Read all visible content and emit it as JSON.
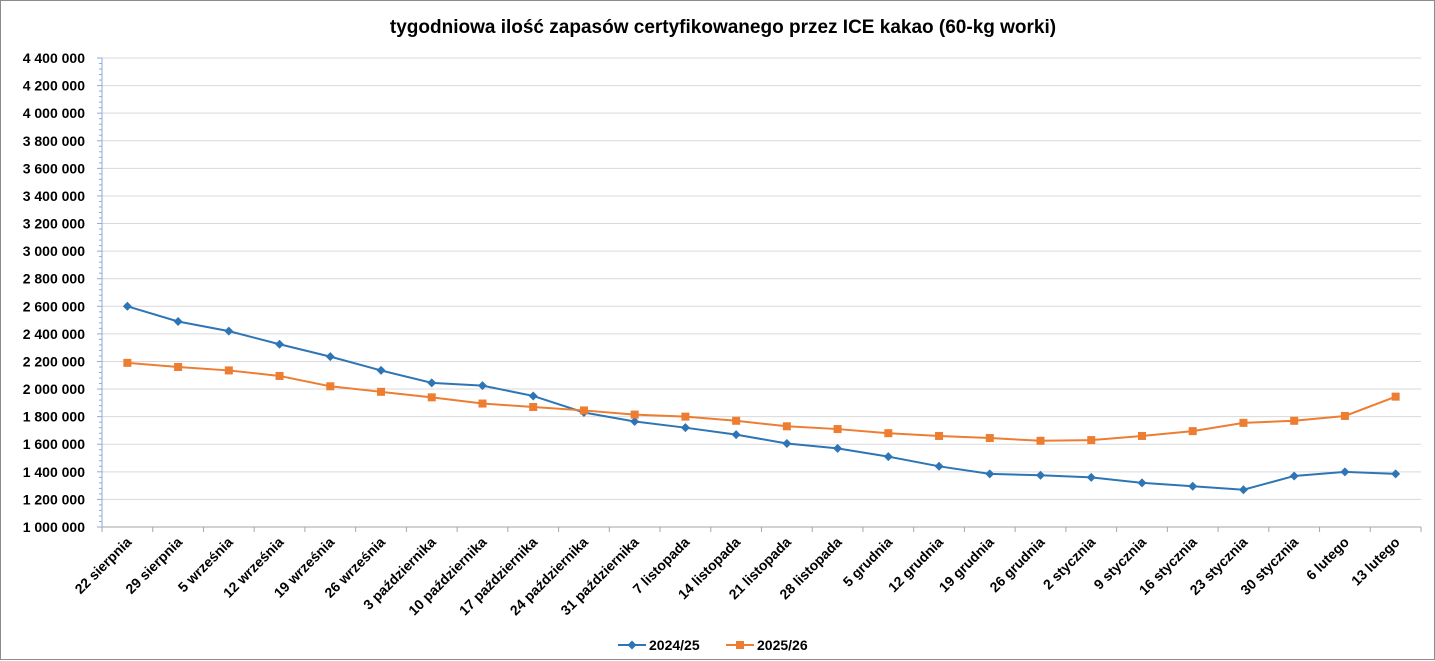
{
  "chart_data": {
    "type": "line",
    "title": "tygodniowa ilość zapasów certyfikowanego przez ICE kakao (60-kg worki)",
    "xlabel": "",
    "ylabel": "",
    "ylim": [
      1000000,
      4400000
    ],
    "y_step": 200000,
    "y_tick_labels": [
      "1 000 000",
      "1 200 000",
      "1 400 000",
      "1 600 000",
      "1 800 000",
      "2 000 000",
      "2 200 000",
      "2 400 000",
      "2 600 000",
      "2 800 000",
      "3 000 000",
      "3 200 000",
      "3 400 000",
      "3 600 000",
      "3 800 000",
      "4 000 000",
      "4 200 000",
      "4 400 000"
    ],
    "grid": true,
    "legend_position": "bottom",
    "categories": [
      "22 sierpnia",
      "29 sierpnia",
      "5 września",
      "12 września",
      "19 września",
      "26 września",
      "3 października",
      "10 października",
      "17 października",
      "24 października",
      "31 października",
      "7 listopada",
      "14 listopada",
      "21 listopada",
      "28 listopada",
      "5 grudnia",
      "12 grudnia",
      "19 grudnia",
      "26 grudnia",
      "2 stycznia",
      "9 stycznia",
      "16 stycznia",
      "23 stycznia",
      "30 stycznia",
      "6 lutego",
      "13 lutego"
    ],
    "series": [
      {
        "name": "2024/25",
        "color": "#2e75b6",
        "marker": "diamond",
        "values": [
          2600000,
          2490000,
          2420000,
          2325000,
          2235000,
          2135000,
          2045000,
          2025000,
          1950000,
          1830000,
          1765000,
          1720000,
          1670000,
          1605000,
          1570000,
          1510000,
          1440000,
          1385000,
          1375000,
          1360000,
          1320000,
          1295000,
          1270000,
          1370000,
          1400000,
          1385000
        ]
      },
      {
        "name": "2025/26",
        "color": "#ed7d31",
        "marker": "square",
        "values": [
          2190000,
          2160000,
          2135000,
          2095000,
          2020000,
          1980000,
          1940000,
          1895000,
          1870000,
          1845000,
          1815000,
          1800000,
          1770000,
          1730000,
          1710000,
          1680000,
          1660000,
          1645000,
          1625000,
          1630000,
          1660000,
          1695000,
          1755000,
          1770000,
          1805000,
          1945000
        ]
      }
    ]
  }
}
